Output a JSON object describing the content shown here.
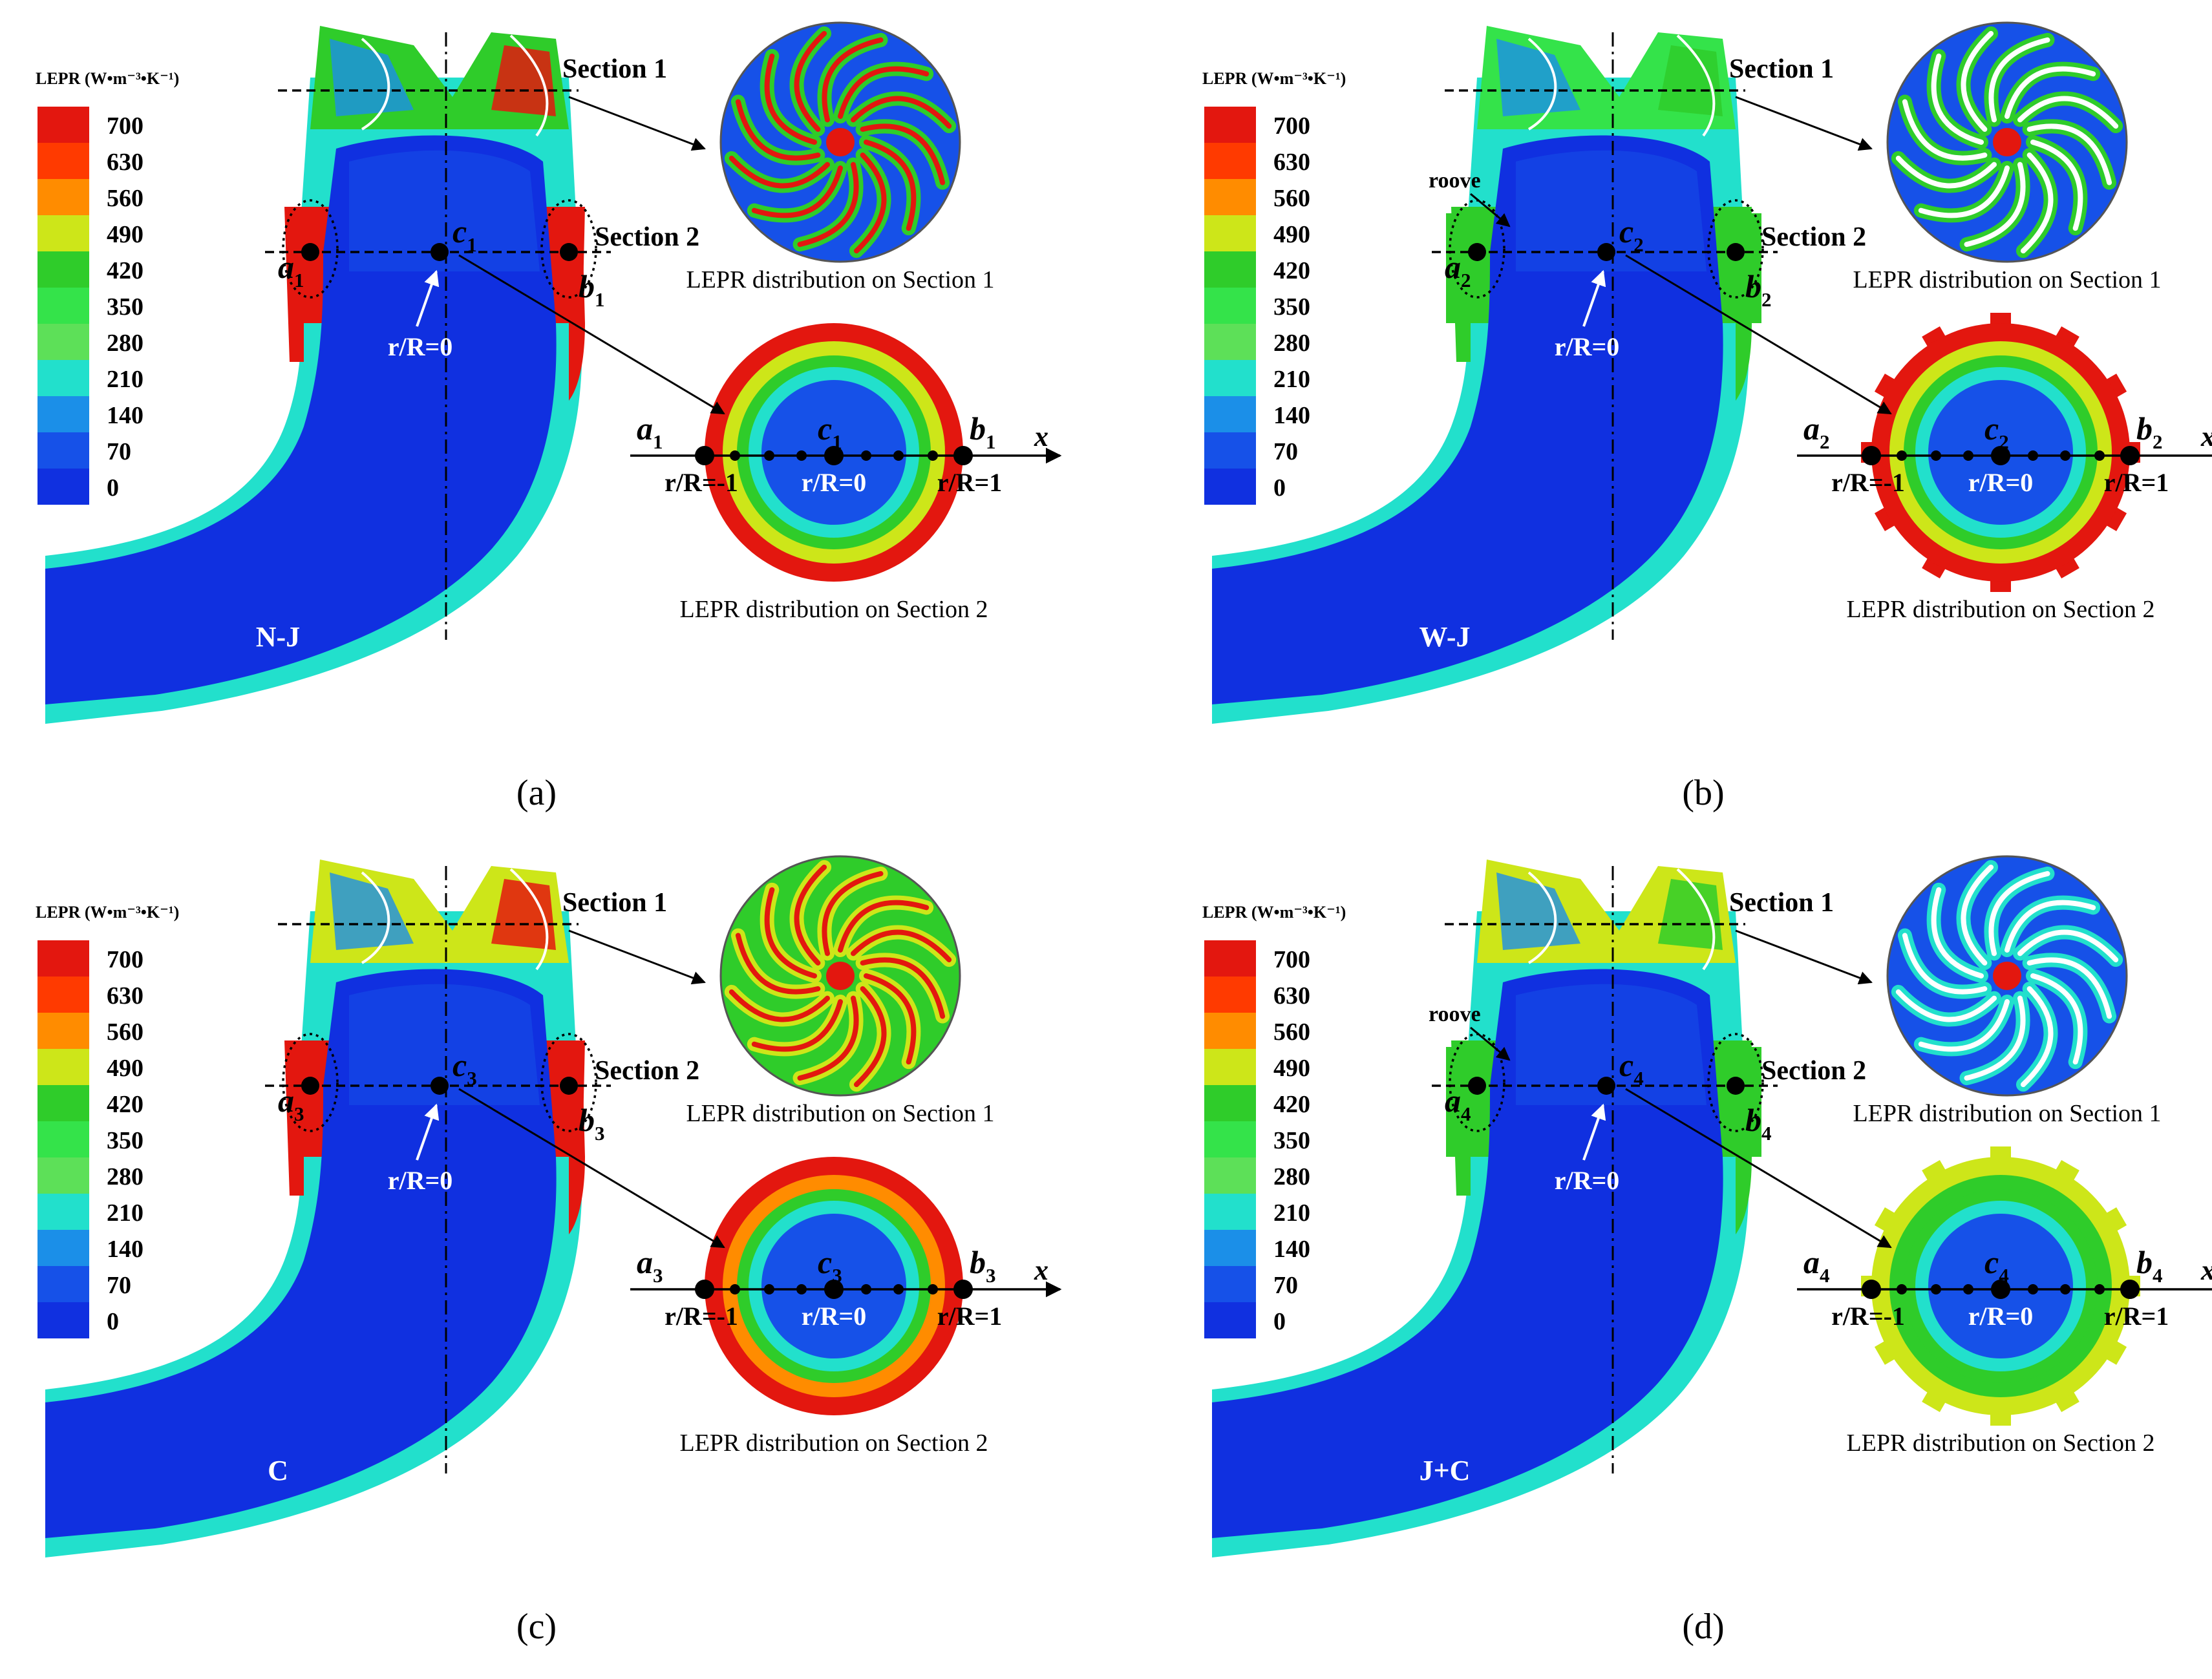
{
  "legend": {
    "title": "LEPR (W•m⁻³•K⁻¹)",
    "levels": [
      "700",
      "630",
      "560",
      "490",
      "420",
      "350",
      "280",
      "210",
      "140",
      "70",
      "0"
    ],
    "colors": [
      "#e3170f",
      "#ff3a00",
      "#ff8c00",
      "#cde619",
      "#2fcc2a",
      "#34e34a",
      "#5de058",
      "#22e0cc",
      "#1b8fe8",
      "#1651e8",
      "#1030e0"
    ]
  },
  "labels": {
    "section1": "Section 1",
    "section2": "Section 2",
    "dist1": "LEPR distribution on Section 1",
    "dist2": "LEPR distribution on Section 2",
    "r0": "r/R=0",
    "rneg": "r/R=-1",
    "rpos": "r/R=1",
    "x": "x",
    "groove": "roove"
  },
  "panels": [
    {
      "caption": "(a)",
      "case": "N-J",
      "a": "a",
      "b": "b",
      "c": "c",
      "sub": "1"
    },
    {
      "caption": "(b)",
      "case": "W-J",
      "a": "a",
      "b": "b",
      "c": "c",
      "sub": "2"
    },
    {
      "caption": "(c)",
      "case": "C",
      "a": "a",
      "b": "b",
      "c": "c",
      "sub": "3"
    },
    {
      "caption": "(d)",
      "case": "J+C",
      "a": "a",
      "b": "b",
      "c": "c",
      "sub": "4"
    }
  ]
}
